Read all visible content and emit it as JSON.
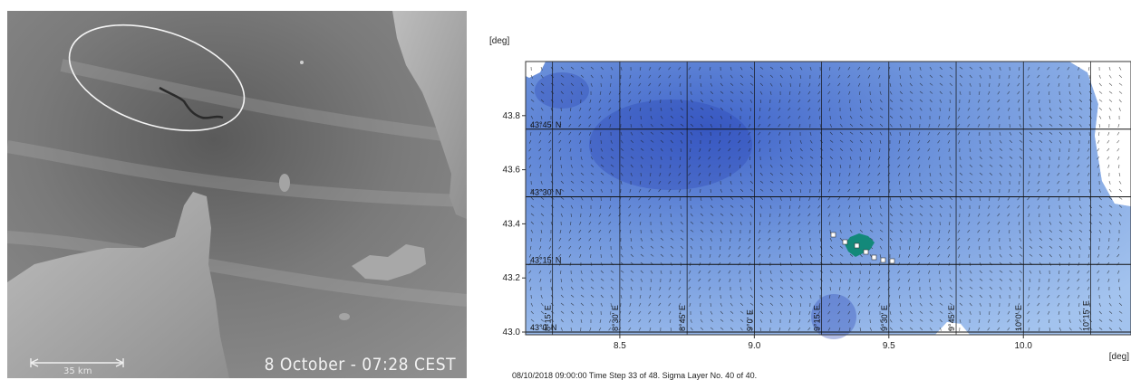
{
  "satellite": {
    "caption": "8 October - 07:28 CEST",
    "scale_label": "35 km"
  },
  "model_map": {
    "y_unit": "[deg]",
    "x_unit": "[deg]",
    "y_ticks": [
      "43.8",
      "43.6",
      "43.4",
      "43.2",
      "43.0"
    ],
    "x_ticks": [
      "8.5",
      "9.0",
      "9.5",
      "10.0"
    ],
    "lat_labels": [
      "43°45' N",
      "43°30' N",
      "43°15' N",
      "43°0' N"
    ],
    "lon_labels": [
      "8°15' E",
      "8°30' E",
      "8°45' E",
      "9°0' E",
      "9°15' E",
      "9°30' E",
      "9°45' E",
      "10°0' E",
      "10°15' E"
    ],
    "status": "08/10/2018 09:00:00  Time Step 33 of 48. Sigma Layer No. 40 of 40.",
    "colors": {
      "sea_dark": "#3a5fc8",
      "sea_light": "#a9c8ef",
      "spill": "#13897a"
    }
  }
}
